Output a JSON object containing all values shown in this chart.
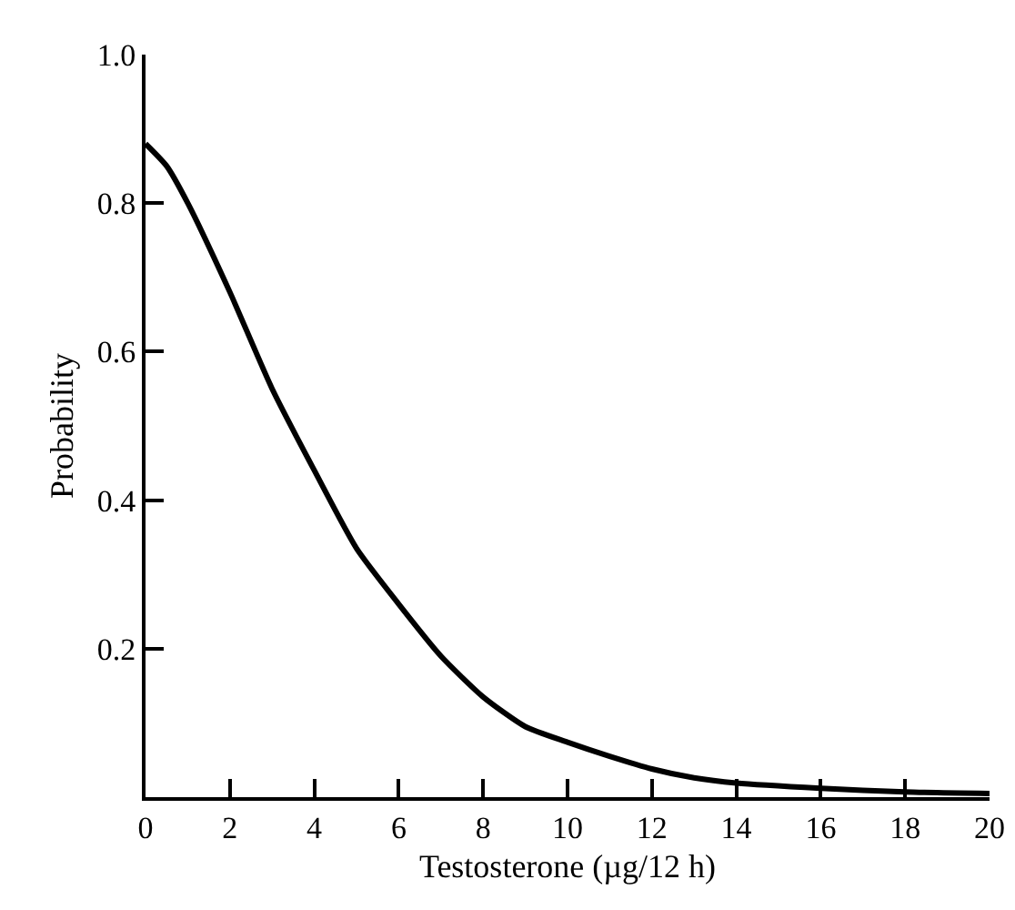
{
  "chart_data": {
    "type": "line",
    "xlabel": "Testosterone (µg/12 h)",
    "ylabel": "Probability",
    "x": [
      0,
      0.5,
      1,
      2,
      3,
      4,
      5,
      6,
      7,
      8,
      9,
      10,
      11,
      12,
      13,
      14,
      16,
      18,
      20
    ],
    "series": [
      {
        "color": "#000000",
        "values": [
          0.88,
          0.85,
          0.8,
          0.68,
          0.55,
          0.44,
          0.335,
          0.26,
          0.19,
          0.135,
          0.095,
          0.074,
          0.055,
          0.038,
          0.026,
          0.019,
          0.012,
          0.007,
          0.005
        ]
      }
    ],
    "xlim": [
      0,
      20
    ],
    "xticks": [
      0,
      2,
      4,
      6,
      8,
      10,
      12,
      14,
      16,
      18,
      20
    ],
    "ylim": [
      0,
      1.0
    ],
    "yticks": [
      {
        "value": 0.2,
        "label": "0.2"
      },
      {
        "value": 0.4,
        "label": "0.4"
      },
      {
        "value": 0.6,
        "label": "0.6"
      },
      {
        "value": 0.8,
        "label": "0.8"
      },
      {
        "value": 1.0,
        "label": "1.0"
      }
    ],
    "grid": false,
    "marker": "none",
    "line_style": "solid"
  }
}
